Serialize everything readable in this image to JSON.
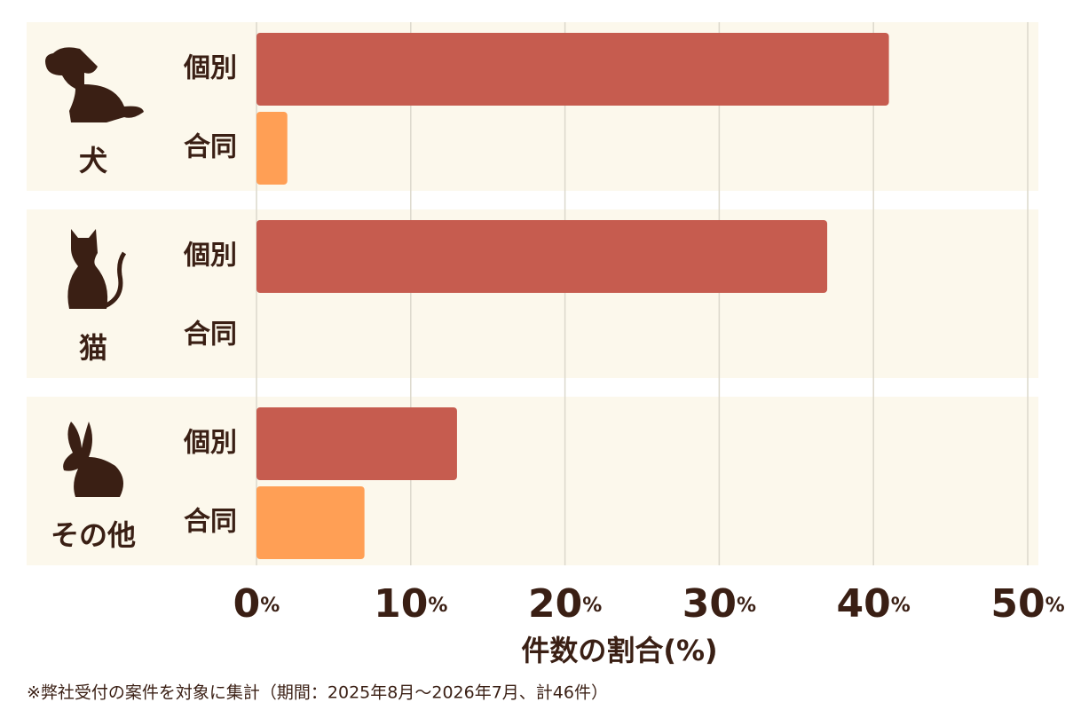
{
  "chart_data": {
    "type": "hbar",
    "x_label": "件数の割合(%)",
    "footnote": "※弊社受付の案件を対象に集計（期間：2025年8月〜2026年7月、計46件）",
    "categories": [
      "犬",
      "猫",
      "その他"
    ],
    "series": [
      {
        "name": "個別",
        "color": "#c65c4f",
        "values": [
          41,
          37,
          13
        ]
      },
      {
        "name": "合同",
        "color": "#ff9f55",
        "values": [
          2,
          0,
          7
        ]
      }
    ],
    "xlim": [
      0,
      50
    ],
    "xticks": [
      {
        "value": 0,
        "label": "0%"
      },
      {
        "value": 10,
        "label": "10%"
      },
      {
        "value": 20,
        "label": "20%"
      },
      {
        "value": 30,
        "label": "30%"
      },
      {
        "value": 40,
        "label": "40%"
      },
      {
        "value": 50,
        "label": "50%"
      }
    ],
    "grid": true
  }
}
